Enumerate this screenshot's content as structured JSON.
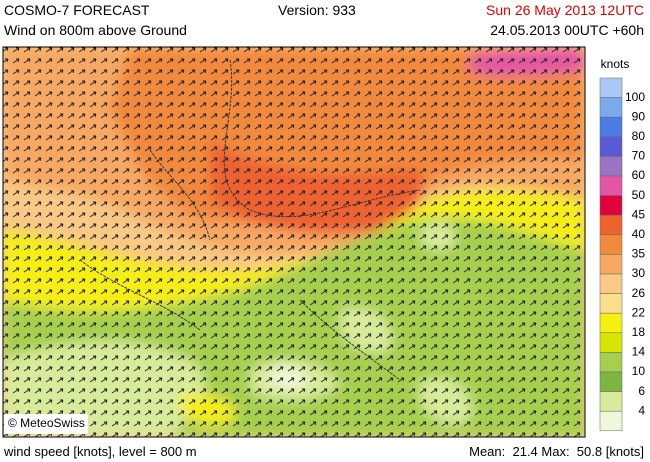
{
  "header": {
    "title": "COSMO-7 FORECAST",
    "version": "Version: 933",
    "valid_time": "Sun 26 May 2013 12UTC",
    "subtitle": "Wind on 800m above Ground",
    "run": "24.05.2013 00UTC +60h"
  },
  "legend": {
    "unit": "knots",
    "labels": [
      100,
      90,
      80,
      70,
      60,
      50,
      45,
      40,
      35,
      30,
      26,
      22,
      18,
      14,
      10,
      6,
      4
    ],
    "colors": [
      "#a9c8f6",
      "#7aa9ee",
      "#4d7be6",
      "#5a5ad6",
      "#9a74c2",
      "#e455a6",
      "#e0023c",
      "#ee6230",
      "#f28a3c",
      "#f7a862",
      "#f9c985",
      "#f9df8a",
      "#f5ef12",
      "#d6e602",
      "#a6cf4e",
      "#7ab640",
      "#d8eb9a",
      "#f1f8da"
    ]
  },
  "map": {
    "copyright": "© MeteoSwiss"
  },
  "footer": {
    "left": "wind speed [knots], level = 800 m",
    "right": "Mean:  21.4 Max:  50.8 [knots]"
  }
}
